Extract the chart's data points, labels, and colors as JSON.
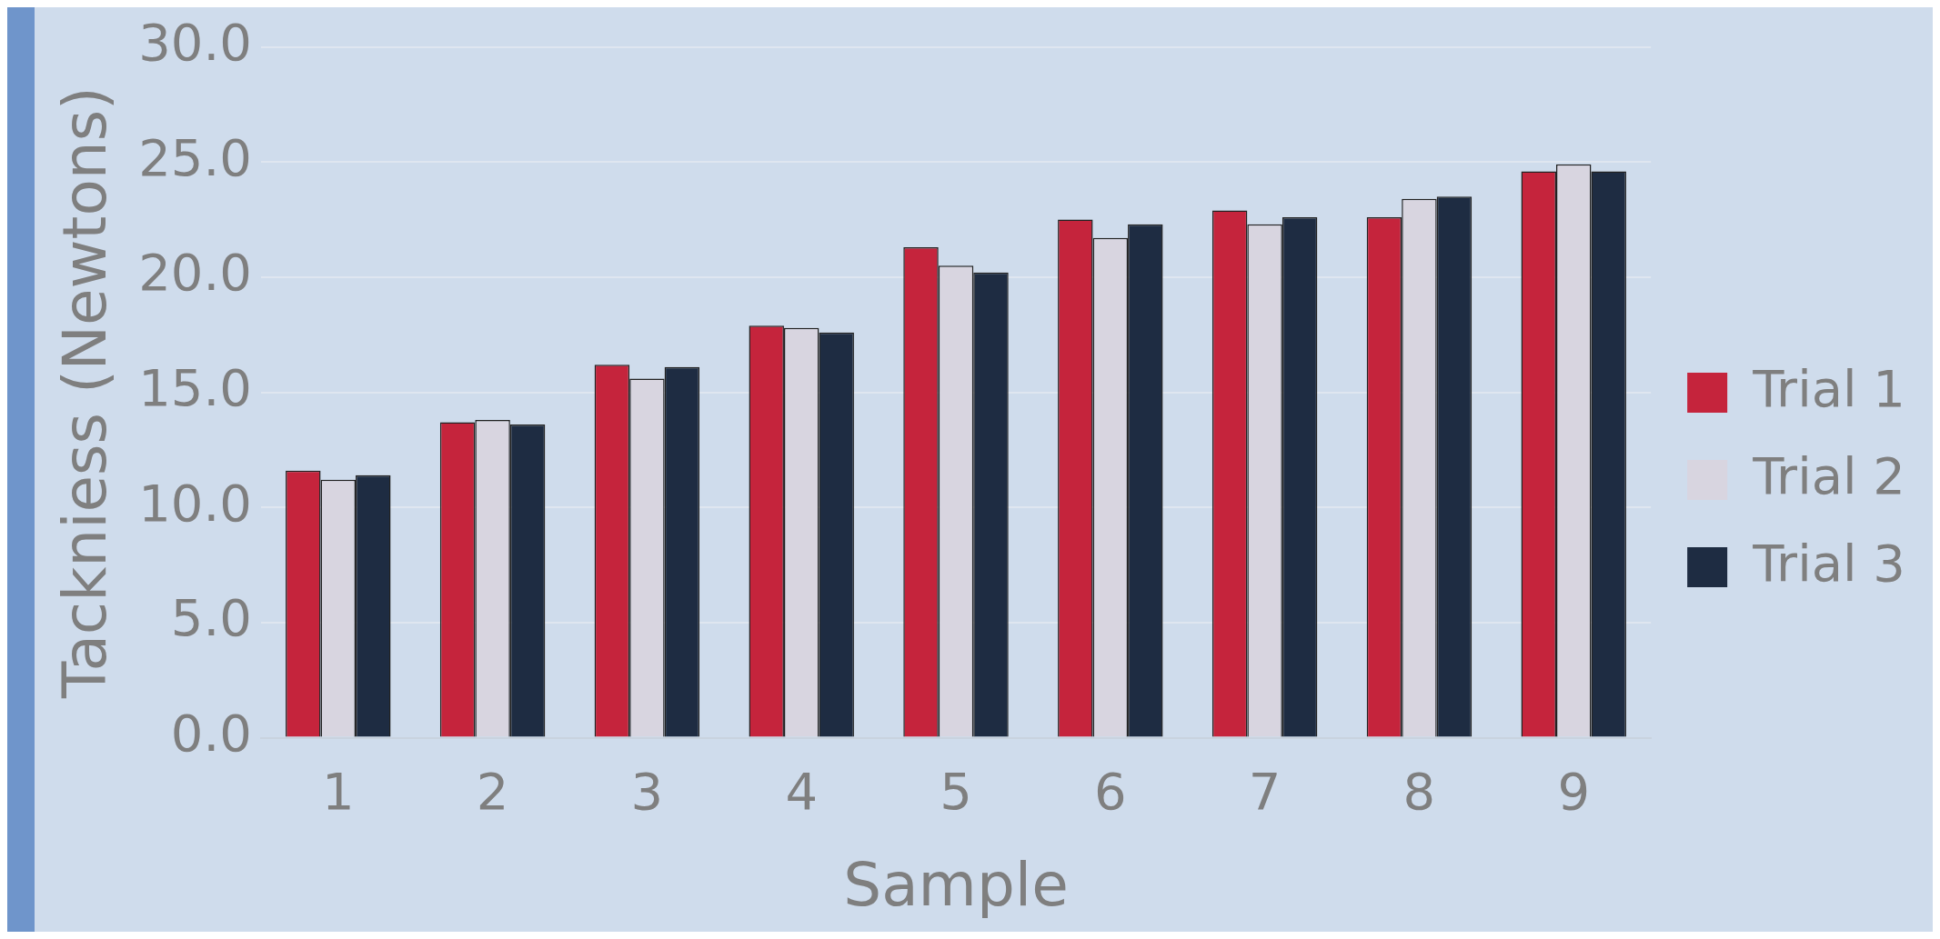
{
  "chart_data": {
    "type": "bar",
    "xlabel": "Sample",
    "ylabel": "Tackniess (Newtons)",
    "categories": [
      "1",
      "2",
      "3",
      "4",
      "5",
      "6",
      "7",
      "8",
      "9"
    ],
    "series": [
      {
        "name": "Trial 1",
        "color": "#c5243c",
        "values": [
          11.6,
          13.7,
          16.2,
          17.9,
          21.3,
          22.5,
          22.9,
          22.6,
          24.6
        ]
      },
      {
        "name": "Trial 2",
        "color": "#d8d5e0",
        "values": [
          11.2,
          13.8,
          15.6,
          17.8,
          20.5,
          21.7,
          22.3,
          23.4,
          24.9
        ]
      },
      {
        "name": "Trial 3",
        "color": "#1e2c42",
        "values": [
          11.4,
          13.6,
          16.1,
          17.6,
          20.2,
          22.3,
          22.6,
          23.5,
          24.6
        ]
      }
    ],
    "ylim": [
      0,
      30
    ],
    "yticks": [
      {
        "value": 0,
        "label": "0.0"
      },
      {
        "value": 5,
        "label": "5.0"
      },
      {
        "value": 10,
        "label": "10.0"
      },
      {
        "value": 15,
        "label": "15.0"
      },
      {
        "value": 20,
        "label": "20.0"
      },
      {
        "value": 25,
        "label": "25.0"
      },
      {
        "value": 30,
        "label": "30.0"
      }
    ],
    "grid": "y",
    "legend": "right"
  }
}
